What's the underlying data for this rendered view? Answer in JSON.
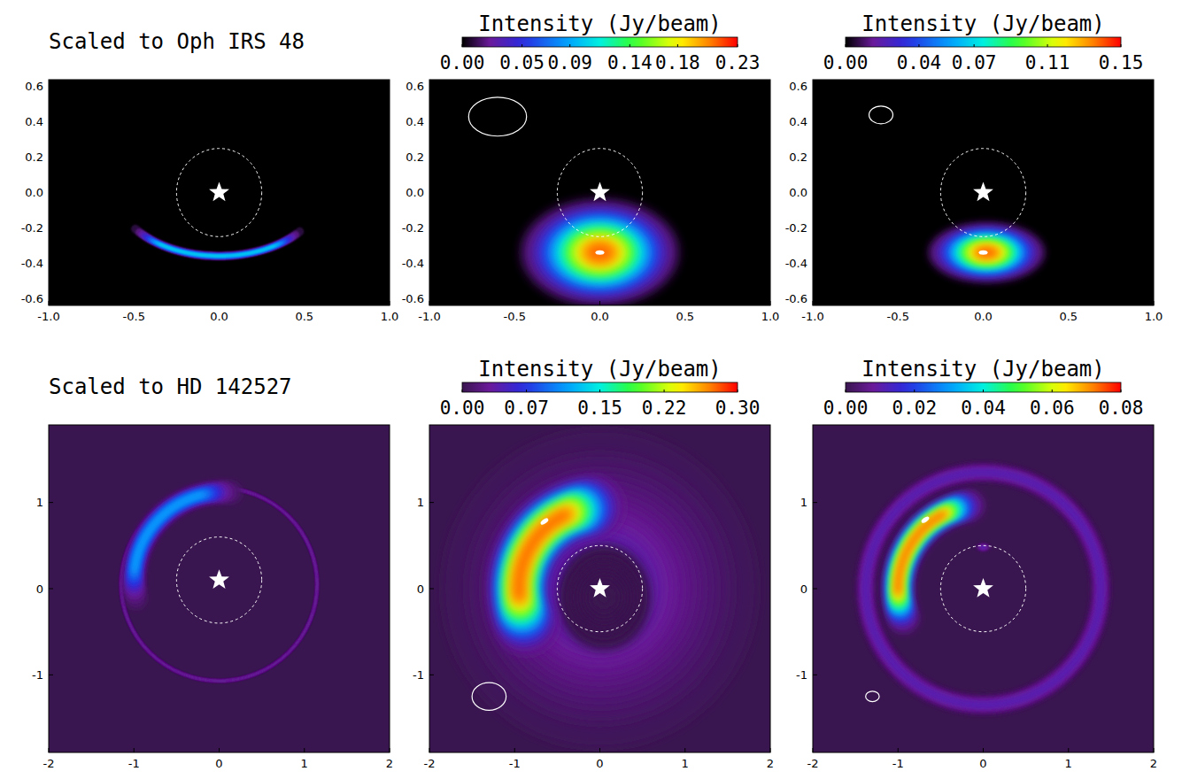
{
  "chart_data": [
    {
      "type": "heatmap",
      "title": "Scaled to Oph IRS 48",
      "color": "#000000",
      "xlim": [
        -1,
        1
      ],
      "ylim": [
        -0.64,
        0.64
      ],
      "xticks": [
        {
          "value": -1,
          "label": "-1.0"
        },
        -0.5,
        {
          "value": 0,
          "label": "0.0"
        },
        0.5,
        {
          "value": 1,
          "label": "1.0"
        }
      ],
      "yticks": [
        -0.6,
        -0.4,
        -0.2,
        {
          "value": 0,
          "label": "0.0"
        },
        0.2,
        0.4,
        0.6
      ],
      "zlim": [
        0,
        1
      ],
      "star": {
        "x": 0,
        "y": 0
      },
      "circle": {
        "x": 0,
        "y": 0,
        "r": 0.25
      },
      "features": [
        {
          "type": "arc",
          "x": 0,
          "y": 0,
          "rx": 0.6,
          "ry": 0.36,
          "start": 215,
          "end": 322,
          "width": 0.05,
          "peak": 0.5
        }
      ]
    },
    {
      "type": "heatmap",
      "color": "#000000",
      "xlim": [
        -1,
        1
      ],
      "ylim": [
        -0.64,
        0.64
      ],
      "xticks": [
        {
          "value": -1,
          "label": "-1.0"
        },
        -0.5,
        {
          "value": 0,
          "label": "0.0"
        },
        0.5,
        {
          "value": 1,
          "label": "1.0"
        }
      ],
      "yticks": [
        -0.6,
        -0.4,
        -0.2,
        {
          "value": 0,
          "label": "0.0"
        },
        0.2,
        0.4,
        0.6
      ],
      "colorbar": {
        "label": "Intensity (Jy/beam)",
        "range": [
          0,
          0.23
        ],
        "ticks": [
          {
            "value": 0,
            "label": "0.00"
          },
          0.05,
          0.09,
          0.14,
          0.18,
          0.23
        ]
      },
      "star": {
        "x": 0,
        "y": 0
      },
      "circle": {
        "x": 0,
        "y": 0,
        "r": 0.25
      },
      "beam": {
        "x": -0.6,
        "y": 0.43,
        "rx": 0.17,
        "ry": 0.11
      },
      "features": [
        {
          "type": "ellipse",
          "x": 0,
          "y": -0.34,
          "rx": 0.46,
          "ry": 0.3,
          "peak": 0.23
        }
      ],
      "peak_marker": {
        "x": 0,
        "y": -0.34
      }
    },
    {
      "type": "heatmap",
      "color": "#000000",
      "xlim": [
        -1,
        1
      ],
      "ylim": [
        -0.64,
        0.64
      ],
      "xticks": [
        {
          "value": -1,
          "label": "-1.0"
        },
        -0.5,
        {
          "value": 0,
          "label": "0.0"
        },
        0.5,
        {
          "value": 1,
          "label": "1.0"
        }
      ],
      "yticks": [
        -0.6,
        -0.4,
        -0.2,
        {
          "value": 0,
          "label": "0.0"
        },
        0.2,
        0.4,
        0.6
      ],
      "colorbar": {
        "label": "Intensity (Jy/beam)",
        "range": [
          0,
          0.15
        ],
        "ticks": [
          {
            "value": 0,
            "label": "0.00"
          },
          0.04,
          0.07,
          0.11,
          0.15
        ]
      },
      "star": {
        "x": 0,
        "y": 0
      },
      "circle": {
        "x": 0,
        "y": 0,
        "r": 0.25
      },
      "beam": {
        "x": -0.6,
        "y": 0.44,
        "rx": 0.07,
        "ry": 0.05
      },
      "features": [
        {
          "type": "ellipse",
          "x": 0.02,
          "y": -0.34,
          "rx": 0.34,
          "ry": 0.17,
          "peak": 0.15
        }
      ],
      "peak_marker": {
        "x": 0,
        "y": -0.34
      }
    },
    {
      "type": "heatmap",
      "title": "Scaled to HD 142527",
      "color": "#3a1650",
      "xlim": [
        -2,
        2
      ],
      "ylim": [
        -1.9,
        1.9
      ],
      "xticks": [
        -2,
        -1,
        0,
        1,
        2
      ],
      "yticks": [
        -1,
        0,
        1
      ],
      "zlim": [
        0,
        1
      ],
      "star": {
        "x": 0,
        "y": 0.1
      },
      "circle": {
        "x": 0,
        "y": 0.1,
        "r": 0.5
      },
      "features": [
        {
          "type": "arc",
          "x": 0,
          "y": 0.05,
          "rx": 1.15,
          "ry": 1.12,
          "start": 0,
          "end": 360,
          "width": 0.04,
          "peak": 0.12
        },
        {
          "type": "arc",
          "x": 0.05,
          "y": 0.1,
          "rx": 1.05,
          "ry": 1.02,
          "start": 85,
          "end": 192,
          "width": 0.26,
          "peak": 0.42
        }
      ]
    },
    {
      "type": "heatmap",
      "color": "#3a1650",
      "xlim": [
        -2,
        2
      ],
      "ylim": [
        -1.9,
        1.9
      ],
      "xticks": [
        -2,
        -1,
        0,
        1,
        2
      ],
      "yticks": [
        -1,
        0,
        1
      ],
      "colorbar": {
        "label": "Intensity (Jy/beam)",
        "range": [
          0,
          0.3
        ],
        "ticks": [
          {
            "value": 0,
            "label": "0.00"
          },
          0.07,
          0.15,
          0.22,
          {
            "value": 0.3,
            "label": "0.30"
          }
        ]
      },
      "star": {
        "x": 0,
        "y": 0
      },
      "circle": {
        "x": 0,
        "y": 0,
        "r": 0.5
      },
      "beam": {
        "x": -1.3,
        "y": -1.25,
        "rx": 0.2,
        "ry": 0.16
      },
      "features": [
        {
          "type": "ellipse",
          "x": 0,
          "y": 0,
          "rx": 1.85,
          "ry": 1.85,
          "peak": 0.05
        },
        {
          "type": "ellipse",
          "x": 0.05,
          "y": -0.1,
          "rx": 0.55,
          "ry": 0.62,
          "peak": 0
        },
        {
          "type": "arc",
          "x": 0,
          "y": 0,
          "rx": 0.95,
          "ry": 0.95,
          "start": 95,
          "end": 205,
          "width": 0.75,
          "peak": 0.3
        }
      ],
      "peak_marker": {
        "x": -0.65,
        "y": 0.78
      }
    },
    {
      "type": "heatmap",
      "color": "#3a1650",
      "xlim": [
        -2,
        2
      ],
      "ylim": [
        -1.9,
        1.9
      ],
      "xticks": [
        -2,
        -1,
        0,
        1,
        2
      ],
      "yticks": [
        -1,
        0,
        1
      ],
      "colorbar": {
        "label": "Intensity (Jy/beam)",
        "range": [
          0,
          0.08
        ],
        "ticks": [
          {
            "value": 0,
            "label": "0.00"
          },
          0.02,
          0.04,
          0.06,
          0.08
        ]
      },
      "star": {
        "x": 0,
        "y": 0
      },
      "circle": {
        "x": 0,
        "y": 0,
        "r": 0.5
      },
      "beam": {
        "x": -1.3,
        "y": -1.25,
        "rx": 0.08,
        "ry": 0.06
      },
      "features": [
        {
          "type": "arc",
          "x": 0,
          "y": 0,
          "rx": 1.38,
          "ry": 1.35,
          "start": 0,
          "end": 360,
          "width": 0.25,
          "peak": 0.012
        },
        {
          "type": "ellipse",
          "x": 0,
          "y": 0.48,
          "rx": 0.1,
          "ry": 0.06,
          "peak": 0.012
        },
        {
          "type": "arc",
          "x": 0,
          "y": 0,
          "rx": 1.0,
          "ry": 0.98,
          "start": 100,
          "end": 200,
          "width": 0.36,
          "peak": 0.08
        }
      ],
      "peak_marker": {
        "x": -0.68,
        "y": 0.8
      }
    }
  ]
}
